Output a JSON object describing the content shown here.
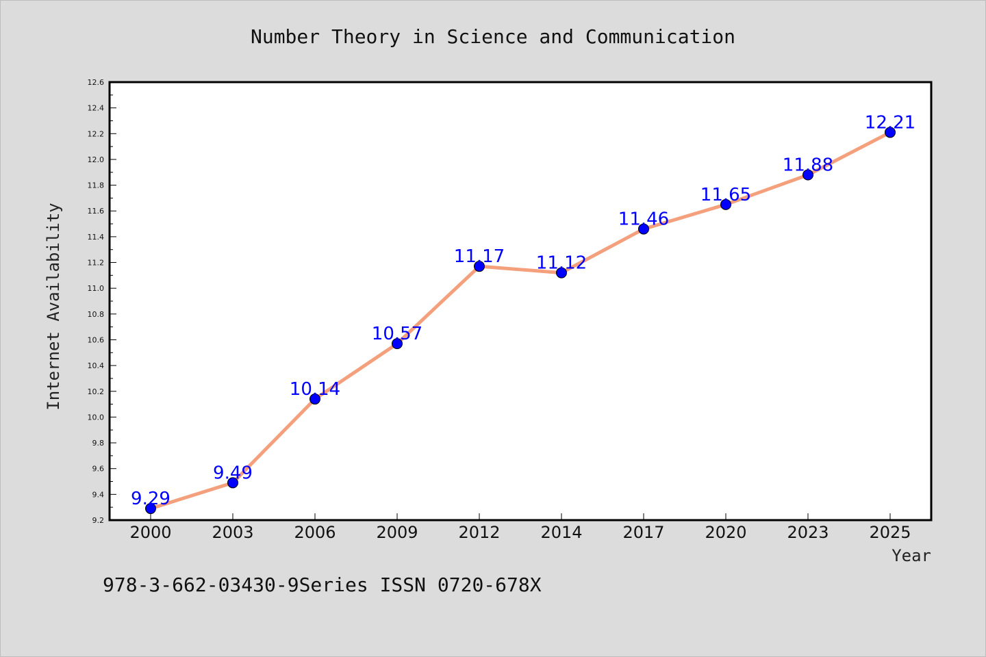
{
  "chart_data": {
    "type": "line",
    "title": "Number Theory in Science and Communication",
    "xlabel": "Year",
    "ylabel": "Internet Availability",
    "categories": [
      "2000",
      "2003",
      "2006",
      "2009",
      "2012",
      "2014",
      "2017",
      "2020",
      "2023",
      "2025"
    ],
    "values": [
      9.29,
      9.49,
      10.14,
      10.57,
      11.17,
      11.12,
      11.46,
      11.65,
      11.88,
      12.21
    ],
    "data_labels": [
      "9.29",
      "9.49",
      "10.14",
      "10.57",
      "11.17",
      "11.12",
      "11.46",
      "11.65",
      "11.88",
      "12.21"
    ],
    "ylim": [
      9.2,
      12.6
    ],
    "yticks": [
      "9.2",
      "9.4",
      "9.6",
      "9.8",
      "10.0",
      "10.2",
      "10.4",
      "10.6",
      "10.8",
      "11.0",
      "11.2",
      "11.4",
      "11.6",
      "11.8",
      "12.0",
      "12.2",
      "12.4",
      "12.6"
    ],
    "grid": false,
    "line_color": "#f4a07c",
    "marker_color": "#0000ff",
    "label_color": "#0000ff"
  },
  "footer": "978-3-662-03430-9Series ISSN 0720-678X"
}
